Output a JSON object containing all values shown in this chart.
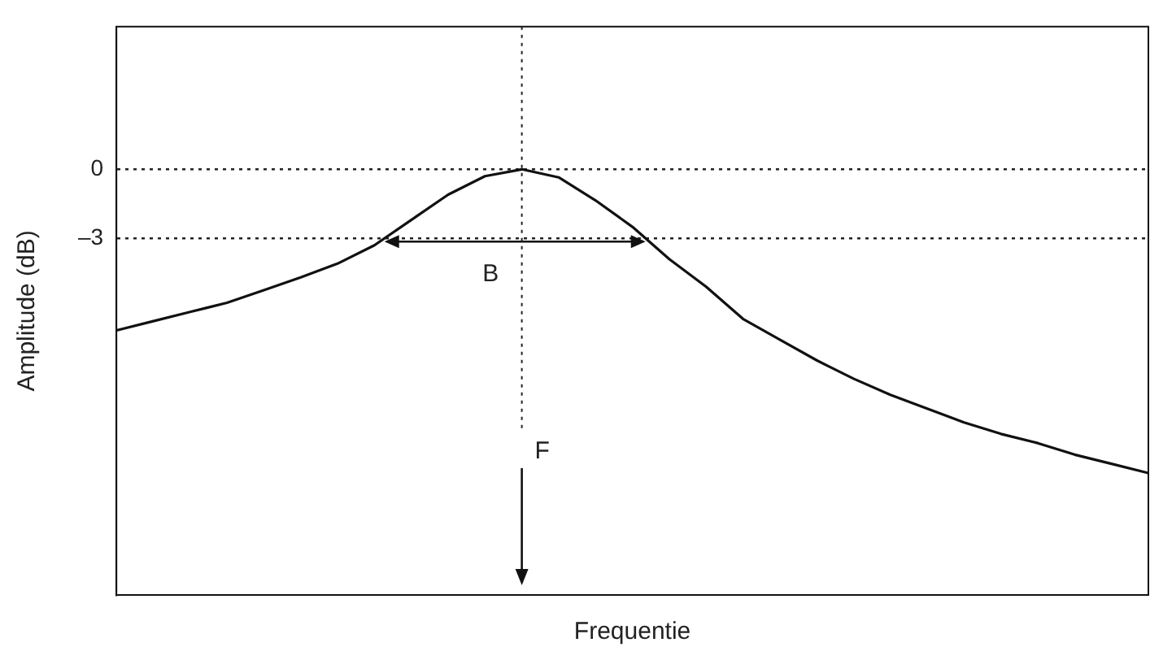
{
  "chart_data": {
    "type": "line",
    "xlabel": "Frequentie",
    "ylabel": "Amplitude (dB)",
    "categories": [
      null,
      null,
      null,
      null,
      null,
      null,
      null,
      null,
      null,
      null,
      null,
      null,
      null,
      null,
      null,
      null,
      null,
      null,
      null,
      null,
      null,
      null,
      null,
      null,
      null,
      null,
      null,
      null,
      null
    ],
    "series": [
      {
        "color": "#111111",
        "values": [
          -7.0,
          -6.6,
          -6.2,
          -5.8,
          -5.25,
          -4.7,
          -4.1,
          -3.3,
          -2.2,
          -1.1,
          -0.3,
          0,
          -0.35,
          -1.35,
          -2.5,
          -3.9,
          -5.1,
          -6.5,
          -7.4,
          -8.3,
          -9.1,
          -9.8,
          -10.4,
          -11.0,
          -11.5,
          -11.9,
          -12.4,
          -12.8,
          -13.2
        ]
      }
    ],
    "ylim": [
      -18.5,
      6.2
    ],
    "yticks": [
      0,
      {
        "value": -3,
        "label": "–3"
      }
    ],
    "annotations": [
      "B",
      "F"
    ],
    "tick_labels": "y",
    "grid": "y",
    "legend": false
  }
}
